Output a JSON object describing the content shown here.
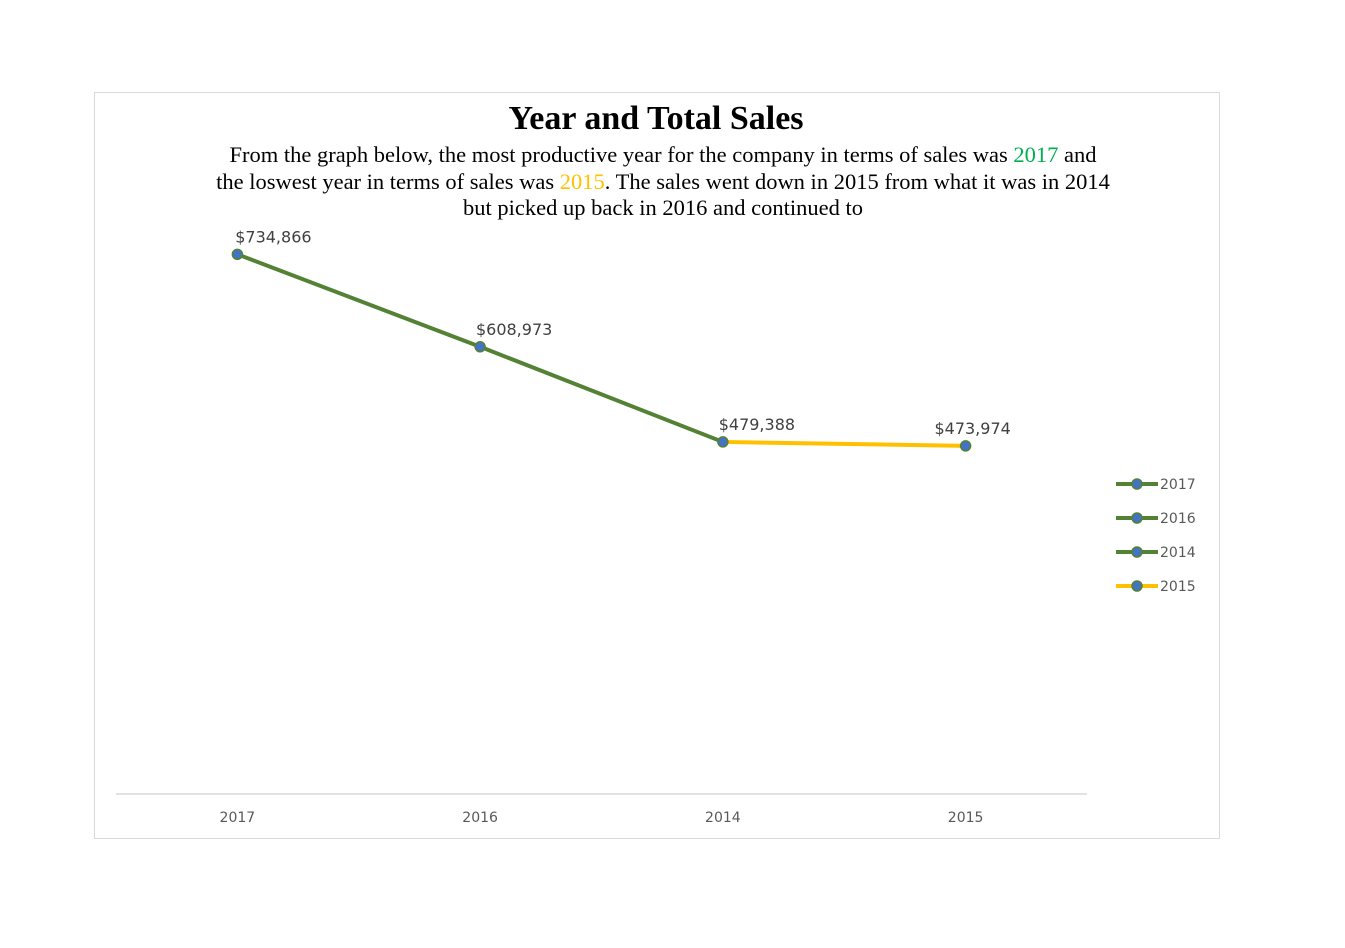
{
  "chart_data": {
    "type": "line",
    "title": "Year and Total Sales",
    "subtitle": {
      "part1": "From the graph below, the most productive year for the company in terms of sales was ",
      "highlight_high": "2017",
      "part2": " and the loswest year in terms of sales was ",
      "highlight_low": "2015",
      "part3": ". The sales went down in 2015 from what it was in 2014 but picked up back in 2016 and continued to"
    },
    "categories": [
      "2017",
      "2016",
      "2014",
      "2015"
    ],
    "values": [
      734866,
      608973,
      479388,
      473974
    ],
    "data_labels": [
      "$734,866",
      "$608,973",
      "$479,388",
      "$473,974"
    ],
    "segment_colors": [
      "#548235",
      "#548235",
      "#ffc000"
    ],
    "marker_color": "#4472c4",
    "legend": [
      {
        "name": "2017",
        "color": "#548235"
      },
      {
        "name": "2016",
        "color": "#548235"
      },
      {
        "name": "2014",
        "color": "#548235"
      },
      {
        "name": "2015",
        "color": "#ffc000"
      }
    ],
    "legend_position": "right",
    "ylim": [
      0,
      800000
    ],
    "grid": false,
    "colors": {
      "highlight_high": "#00b050",
      "highlight_low": "#ffc000"
    }
  }
}
